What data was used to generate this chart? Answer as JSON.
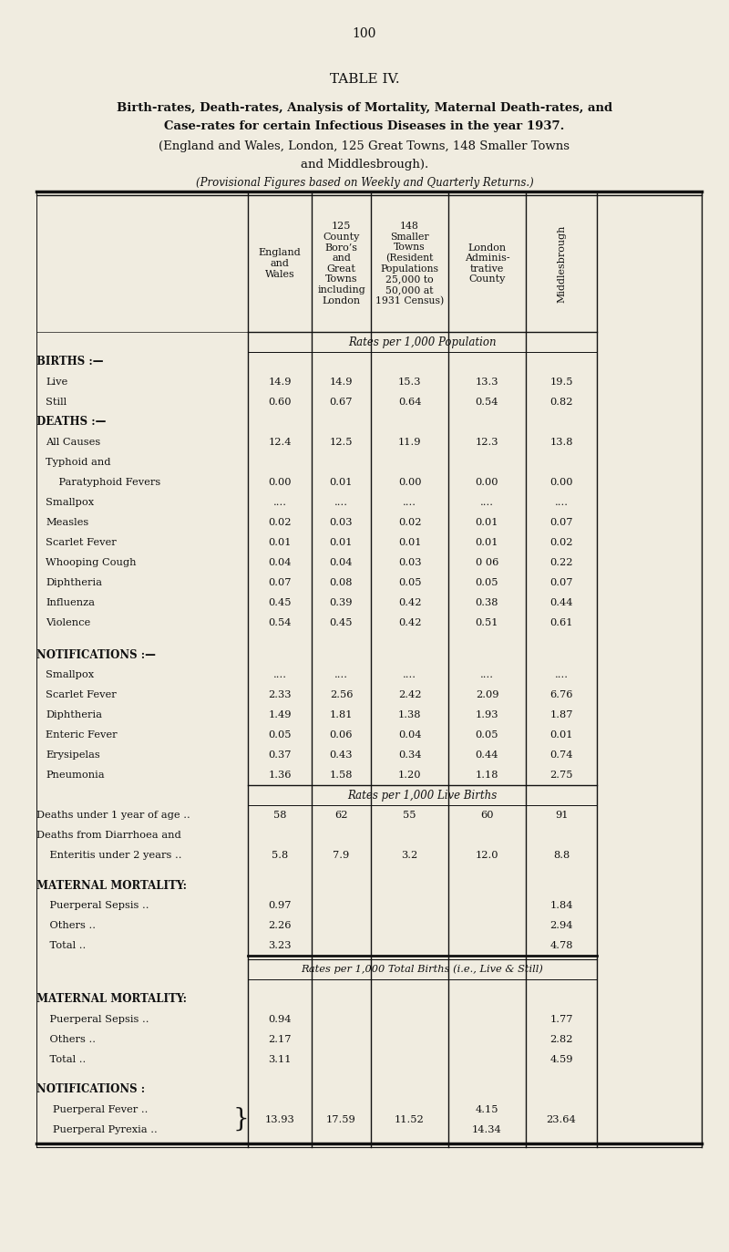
{
  "page_number": "100",
  "title1": "TABLE IV.",
  "title2_line1": "Birth-rates, Death-rates, Analysis of Mortality, Maternal Death-rates, and",
  "title2_line2": "Case-rates for certain Infectious Diseases in the year 1937.",
  "title3_line1": "(England and Wales, London, 125 Great Towns, 148 Smaller Towns",
  "title3_line2": "and Middlesbrough).",
  "title4": "(Provisional Figures based on Weekly and Quarterly Returns.)",
  "bg_color": "#f0ece0",
  "col_header_0": "England\nand\nWales",
  "col_header_1": "125\nCounty\nBoro’s\nand\nGreat\nTowns\nincluding\nLondon",
  "col_header_2": "148\nSmaller\nTowns\n(Resident\nPopulations\n25,000 to\n50,000 at\n1931 Census)",
  "col_header_3": "London\nAdminis-\ntrative\nCounty",
  "col_header_4": "Middlesbrough",
  "rates_per_pop": "Rates per 1,000 Population",
  "rates_per_live": "Rates per 1,000 Live Births",
  "rates_per_total": "Rates per 1,000 Total Births (i.e., Live & Still)",
  "section1_rows": [
    {
      "label": "BIRTHS :—",
      "ind": 0,
      "bold": true,
      "v": [
        "",
        "",
        "",
        "",
        ""
      ]
    },
    {
      "label": "Live",
      "ind": 1,
      "bold": false,
      "v": [
        "14.9",
        "14.9",
        "15.3",
        "13.3",
        "19.5"
      ]
    },
    {
      "label": "Still",
      "ind": 1,
      "bold": false,
      "v": [
        "0.60",
        "0.67",
        "0.64",
        "0.54",
        "0.82"
      ]
    },
    {
      "label": "DEATHS :—",
      "ind": 0,
      "bold": true,
      "v": [
        "",
        "",
        "",
        "",
        ""
      ]
    },
    {
      "label": "All Causes",
      "ind": 1,
      "bold": false,
      "v": [
        "12.4",
        "12.5",
        "11.9",
        "12.3",
        "13.8"
      ]
    },
    {
      "label": "Typhoid and",
      "ind": 1,
      "bold": false,
      "v": [
        "",
        "",
        "",
        "",
        ""
      ]
    },
    {
      "label": "    Paratyphoid Fevers",
      "ind": 1,
      "bold": false,
      "v": [
        "0.00",
        "0.01",
        "0.00",
        "0.00",
        "0.00"
      ]
    },
    {
      "label": "Smallpox",
      "ind": 1,
      "bold": false,
      "v": [
        "....",
        "....",
        "....",
        "....",
        "...."
      ]
    },
    {
      "label": "Measles",
      "ind": 1,
      "bold": false,
      "v": [
        "0.02",
        "0.03",
        "0.02",
        "0.01",
        "0.07"
      ]
    },
    {
      "label": "Scarlet Fever",
      "ind": 1,
      "bold": false,
      "v": [
        "0.01",
        "0.01",
        "0.01",
        "0.01",
        "0.02"
      ]
    },
    {
      "label": "Whooping Cough",
      "ind": 1,
      "bold": false,
      "v": [
        "0.04",
        "0.04",
        "0.03",
        "0 06",
        "0.22"
      ]
    },
    {
      "label": "Diphtheria",
      "ind": 1,
      "bold": false,
      "v": [
        "0.07",
        "0.08",
        "0.05",
        "0.05",
        "0.07"
      ]
    },
    {
      "label": "Influenza",
      "ind": 1,
      "bold": false,
      "v": [
        "0.45",
        "0.39",
        "0.42",
        "0.38",
        "0.44"
      ]
    },
    {
      "label": "Violence",
      "ind": 1,
      "bold": false,
      "v": [
        "0.54",
        "0.45",
        "0.42",
        "0.51",
        "0.61"
      ]
    },
    {
      "label": "",
      "ind": 0,
      "bold": false,
      "spacer": true,
      "v": [
        "",
        "",
        "",
        "",
        ""
      ]
    },
    {
      "label": "NOTIFICATIONS :—",
      "ind": 0,
      "bold": true,
      "v": [
        "",
        "",
        "",
        "",
        ""
      ]
    },
    {
      "label": "Smallpox",
      "ind": 1,
      "bold": false,
      "v": [
        "....",
        "....",
        "....",
        "....",
        "...."
      ]
    },
    {
      "label": "Scarlet Fever",
      "ind": 1,
      "bold": false,
      "v": [
        "2.33",
        "2.56",
        "2.42",
        "2.09",
        "6.76"
      ]
    },
    {
      "label": "Diphtheria",
      "ind": 1,
      "bold": false,
      "v": [
        "1.49",
        "1.81",
        "1.38",
        "1.93",
        "1.87"
      ]
    },
    {
      "label": "Enteric Fever",
      "ind": 1,
      "bold": false,
      "v": [
        "0.05",
        "0.06",
        "0.04",
        "0.05",
        "0.01"
      ]
    },
    {
      "label": "Erysipelas",
      "ind": 1,
      "bold": false,
      "v": [
        "0.37",
        "0.43",
        "0.34",
        "0.44",
        "0.74"
      ]
    },
    {
      "label": "Pneumonia",
      "ind": 1,
      "bold": false,
      "v": [
        "1.36",
        "1.58",
        "1.20",
        "1.18",
        "2.75"
      ]
    }
  ],
  "section2_rows": [
    {
      "label": "Deaths under 1 year of age ..",
      "ind": 0,
      "bold": false,
      "v": [
        "58",
        "62",
        "55",
        "60",
        "91"
      ]
    },
    {
      "label": "Deaths from Diarrhoea and",
      "ind": 0,
      "bold": false,
      "v": [
        "",
        "",
        "",
        "",
        ""
      ]
    },
    {
      "label": "    Enteritis under 2 years ..",
      "ind": 0,
      "bold": false,
      "v": [
        "5.8",
        "7.9",
        "3.2",
        "12.0",
        "8.8"
      ]
    }
  ],
  "section3_rows": [
    {
      "label": "MATERNAL MORTALITY:",
      "ind": 0,
      "bold": true,
      "v": [
        "",
        "",
        "",
        "",
        ""
      ]
    },
    {
      "label": "    Puerperal Sepsis ..",
      "ind": 0,
      "bold": false,
      "v": [
        "0.97",
        "",
        "",
        "",
        "1.84"
      ]
    },
    {
      "label": "    Others ..",
      "ind": 0,
      "bold": false,
      "v": [
        "2.26",
        "",
        "",
        "",
        "2.94"
      ]
    },
    {
      "label": "    Total ..",
      "ind": 0,
      "bold": false,
      "v": [
        "3.23",
        "",
        "",
        "",
        "4.78"
      ]
    }
  ],
  "section4_rows": [
    {
      "label": "MATERNAL MORTALITY:",
      "ind": 0,
      "bold": true,
      "v": [
        "",
        "",
        "",
        "",
        ""
      ]
    },
    {
      "label": "    Puerperal Sepsis ..",
      "ind": 0,
      "bold": false,
      "v": [
        "0.94",
        "",
        "",
        "",
        "1.77"
      ]
    },
    {
      "label": "    Others ..",
      "ind": 0,
      "bold": false,
      "v": [
        "2.17",
        "",
        "",
        "",
        "2.82"
      ]
    },
    {
      "label": "    Total ..",
      "ind": 0,
      "bold": false,
      "v": [
        "3.11",
        "",
        "",
        "",
        "4.59"
      ]
    }
  ],
  "pf_label": "Puerperal Fever ..",
  "pp_label": "Puerperal Pyrexia ..",
  "notif_label": "NOTIFICATIONS :",
  "pf_v0": "13.93",
  "pf_v1": "17.59",
  "pf_v2": "11.52",
  "pf_london1": "4.15",
  "pf_london2": "14.34",
  "pf_v4": "23.64"
}
